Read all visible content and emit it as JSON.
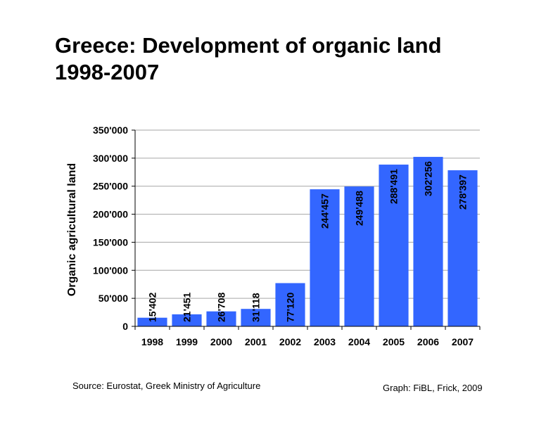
{
  "title": {
    "line1": "Greece: Development of organic land",
    "line2": "1998-2007"
  },
  "footer": {
    "source": "Source: Eurostat, Greek Ministry of Agriculture",
    "credit": "Graph:  FiBL, Frick, 2009"
  },
  "colors": {
    "bar": "#3366ff",
    "grid": "#a6a6a6",
    "axis": "#000000"
  },
  "chart_data": {
    "type": "bar",
    "ylabel": "Organic agricultural land",
    "xlabel": "",
    "ylim": [
      0,
      350000
    ],
    "yticks": [
      0,
      50000,
      100000,
      150000,
      200000,
      250000,
      300000,
      350000
    ],
    "ytick_labels": [
      "0",
      "50'000",
      "100'000",
      "150'000",
      "200'000",
      "250'000",
      "300'000",
      "350'000"
    ],
    "categories": [
      "1998",
      "1999",
      "2000",
      "2001",
      "2002",
      "2003",
      "2004",
      "2005",
      "2006",
      "2007"
    ],
    "values": [
      15402,
      21451,
      26708,
      31118,
      77120,
      244457,
      249488,
      288491,
      302256,
      278397
    ],
    "value_labels": [
      "15'402",
      "21'451",
      "26'708",
      "31'118",
      "77'120",
      "244'457",
      "249'488",
      "288'491",
      "302'256",
      "278'397"
    ],
    "grid": true,
    "legend": false
  }
}
